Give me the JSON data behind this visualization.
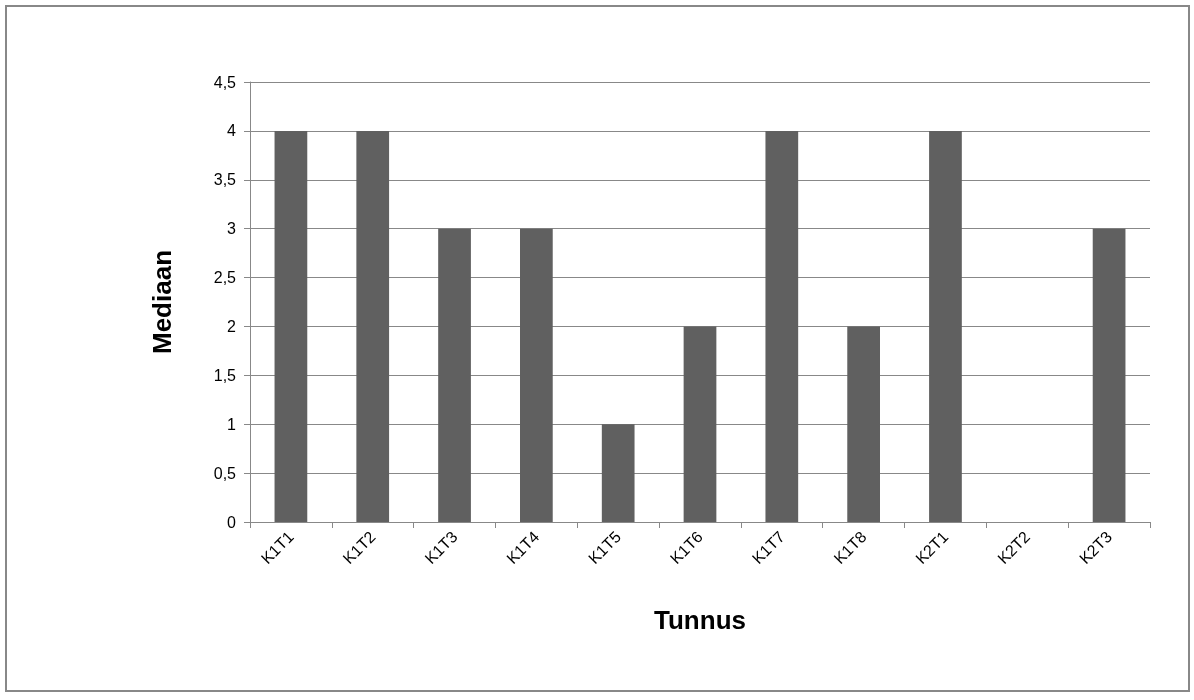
{
  "chart_data": {
    "type": "bar",
    "xlabel": "Tunnus",
    "ylabel": "Mediaan",
    "categories": [
      "K1T1",
      "K1T2",
      "K1T3",
      "K1T4",
      "K1T5",
      "K1T6",
      "K1T7",
      "K1T8",
      "K2T1",
      "K2T2",
      "K2T3"
    ],
    "values": [
      4,
      4,
      3,
      3,
      1,
      2,
      4,
      2,
      4,
      0,
      3
    ],
    "color": "#606060",
    "ylim": [
      0,
      4.5
    ],
    "yticks": [
      0,
      {
        "value": 0.5,
        "label": "0,5"
      },
      1,
      {
        "value": 1.5,
        "label": "1,5"
      },
      2,
      {
        "value": 2.5,
        "label": "2,5"
      },
      3,
      {
        "value": 3.5,
        "label": "3,5"
      },
      4,
      {
        "value": 4.5,
        "label": "4,5"
      }
    ],
    "grid": "y"
  }
}
